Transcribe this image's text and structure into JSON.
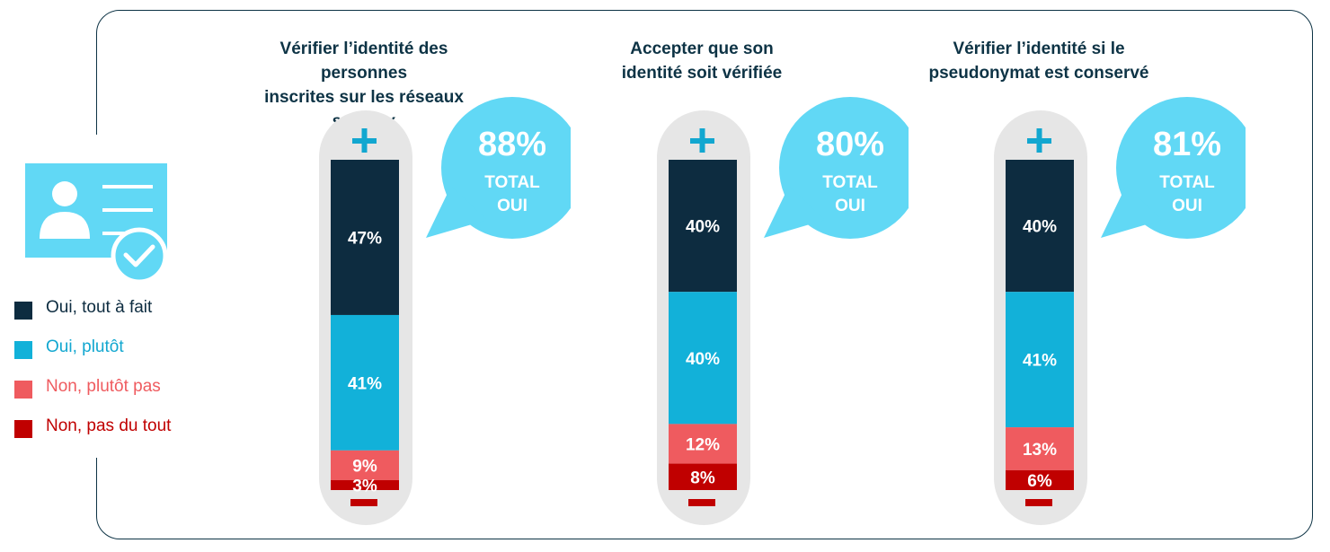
{
  "legend": [
    {
      "label": "Oui, tout à fait",
      "color": "#0d2c40"
    },
    {
      "label": "Oui, plutôt",
      "color": "#12b1d9"
    },
    {
      "label": "Non, plutôt pas",
      "color": "#ef5b5f"
    },
    {
      "label": "Non, pas du tout",
      "color": "#c00000"
    }
  ],
  "icons": {
    "id_card": "id-card-check-icon",
    "plus": "plus-icon",
    "minus": "minus-icon"
  },
  "colors": {
    "frame": "#0d3345",
    "capsule": "#e6e6e6",
    "bubble": "#61d8f5",
    "accent": "#12a7d0"
  },
  "chart_data": [
    {
      "type": "bar",
      "title": "Vérifier l’identité des personnes inscrites sur les réseaux sociaux",
      "title_lines": [
        "Vérifier l’identité des personnes",
        "inscrites sur les réseaux sociaux"
      ],
      "series": [
        {
          "name": "Oui, tout à fait",
          "value": 47,
          "label": "47%"
        },
        {
          "name": "Oui, plutôt",
          "value": 41,
          "label": "41%"
        },
        {
          "name": "Non, plutôt pas",
          "value": 9,
          "label": "9%"
        },
        {
          "name": "Non, pas du tout",
          "value": 3,
          "label": "3%"
        }
      ],
      "total": {
        "value": "88%",
        "line1": "TOTAL",
        "line2": "OUI"
      }
    },
    {
      "type": "bar",
      "title": "Accepter que son identité soit vérifiée",
      "title_lines": [
        "Accepter que son",
        "identité soit vérifiée"
      ],
      "series": [
        {
          "name": "Oui, tout à fait",
          "value": 40,
          "label": "40%"
        },
        {
          "name": "Oui, plutôt",
          "value": 40,
          "label": "40%"
        },
        {
          "name": "Non, plutôt pas",
          "value": 12,
          "label": "12%"
        },
        {
          "name": "Non, pas du tout",
          "value": 8,
          "label": "8%"
        }
      ],
      "total": {
        "value": "80%",
        "line1": "TOTAL",
        "line2": "OUI"
      }
    },
    {
      "type": "bar",
      "title": "Vérifier l’identité si le pseudonymat est conservé",
      "title_lines": [
        "Vérifier l’identité si le",
        "pseudonymat est conservé"
      ],
      "series": [
        {
          "name": "Oui, tout à fait",
          "value": 40,
          "label": "40%"
        },
        {
          "name": "Oui, plutôt",
          "value": 41,
          "label": "41%"
        },
        {
          "name": "Non, plutôt pas",
          "value": 13,
          "label": "13%"
        },
        {
          "name": "Non, pas du tout",
          "value": 6,
          "label": "6%"
        }
      ],
      "total": {
        "value": "81%",
        "line1": "TOTAL",
        "line2": "OUI"
      }
    }
  ]
}
